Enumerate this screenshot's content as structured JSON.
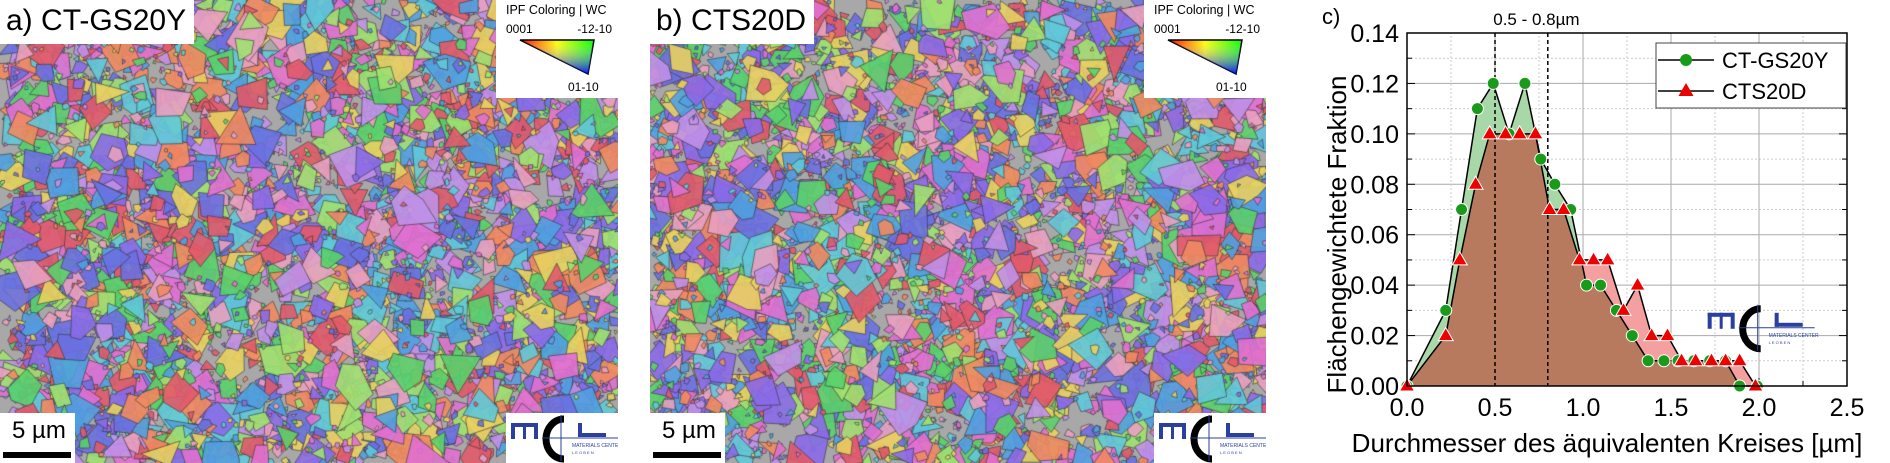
{
  "panels": [
    {
      "label": "a)",
      "sample": "CT-GS20Y",
      "scale_bar": "5 µm",
      "seed": 7
    },
    {
      "label": "b)",
      "sample": "CTS20D",
      "scale_bar": "5 µm",
      "seed": 13
    }
  ],
  "ipf_legend": {
    "title": "IPF Coloring | WC",
    "corner_0001": "0001",
    "corner_12": "-12-10",
    "corner_01": "01-10"
  },
  "logo": {
    "text": "MCL",
    "subtitle1": "MATERIALS CENTER",
    "subtitle2": "L E O B E N",
    "color": "#2a3f9e"
  },
  "chart_data": {
    "type": "area",
    "panel_label": "c)",
    "xlabel": "Durchmesser des äquivalenten Kreises [µm]",
    "ylabel": "Flächengewichtete Fraktion",
    "xlim": [
      0,
      2.5
    ],
    "ylim": [
      0,
      0.14
    ],
    "xticks": [
      "0.0",
      "0.5",
      "1.0",
      "1.5",
      "2.0",
      "2.5"
    ],
    "yticks": [
      "0.00",
      "0.02",
      "0.04",
      "0.06",
      "0.08",
      "0.10",
      "0.12",
      "0.14"
    ],
    "grid": true,
    "legend_position": "top-right",
    "annotation": "0.5 -  0.8µm",
    "vlines": [
      0.5,
      0.8
    ],
    "series": [
      {
        "name": "CT-GS20Y",
        "marker": "circle",
        "color": "#1a9a1a",
        "fill": "#a8d8a8",
        "x": [
          0,
          0.22,
          0.31,
          0.4,
          0.49,
          0.58,
          0.67,
          0.76,
          0.84,
          0.93,
          1.02,
          1.1,
          1.19,
          1.28,
          1.37,
          1.46,
          1.54,
          1.63,
          1.72,
          1.81,
          1.89,
          1.99
        ],
        "y": [
          0,
          0.03,
          0.07,
          0.11,
          0.12,
          0.1,
          0.12,
          0.09,
          0.08,
          0.07,
          0.04,
          0.04,
          0.03,
          0.02,
          0.01,
          0.01,
          0.01,
          0.01,
          0.01,
          0.01,
          0,
          0
        ]
      },
      {
        "name": "CTS20D",
        "marker": "triangle",
        "color": "#ee0000",
        "fill": "#f4a0a0",
        "x": [
          0,
          0.22,
          0.3,
          0.39,
          0.47,
          0.56,
          0.64,
          0.73,
          0.81,
          0.89,
          0.98,
          1.06,
          1.14,
          1.23,
          1.31,
          1.39,
          1.48,
          1.56,
          1.64,
          1.73,
          1.81,
          1.89,
          1.98
        ],
        "y": [
          0,
          0.02,
          0.05,
          0.08,
          0.1,
          0.1,
          0.1,
          0.1,
          0.07,
          0.07,
          0.05,
          0.05,
          0.05,
          0.03,
          0.04,
          0.02,
          0.02,
          0.01,
          0.01,
          0.01,
          0.01,
          0.01,
          0
        ]
      }
    ],
    "overlap_fill": "#b87a5e"
  }
}
